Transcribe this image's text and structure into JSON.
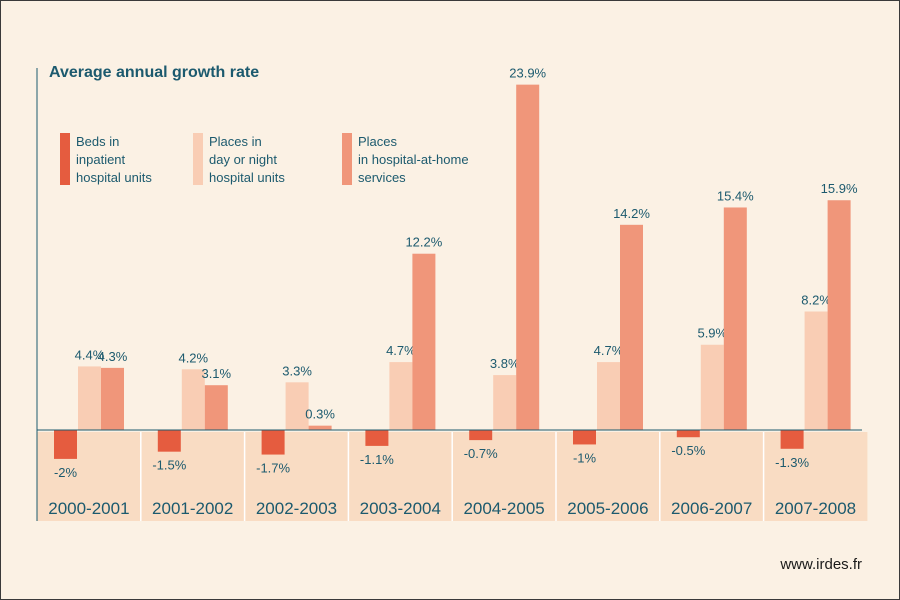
{
  "chart_data": {
    "type": "bar",
    "title": "Average annual growth rate",
    "categories": [
      "2000-2001",
      "2001-2002",
      "2002-2003",
      "2003-2004",
      "2004-2005",
      "2005-2006",
      "2006-2007",
      "2007-2008"
    ],
    "series": [
      {
        "name": "Beds in inpatient hospital units",
        "legend_lines": [
          "Beds in",
          "inpatient",
          "hospital units"
        ],
        "color": "#e55c3f",
        "values": [
          -2,
          -1.5,
          -1.7,
          -1.1,
          -0.7,
          -1,
          -0.5,
          -1.3
        ],
        "labels": [
          "-2%",
          "-1.5%",
          "-1.7%",
          "-1.1%",
          "-0.7%",
          "-1%",
          "-0.5%",
          "-1.3%"
        ]
      },
      {
        "name": "Places in day or night hospital units",
        "legend_lines": [
          "Places in",
          "day or night",
          "hospital units"
        ],
        "color": "#f9cdb4",
        "values": [
          4.4,
          4.2,
          3.3,
          4.7,
          3.8,
          4.7,
          5.9,
          8.2
        ],
        "labels": [
          "4.4%",
          "4.2%",
          "3.3%",
          "4.7%",
          "3.8%",
          "4.7%",
          "5.9%",
          "8.2%"
        ]
      },
      {
        "name": "Places in hospital-at-home services",
        "legend_lines": [
          "Places",
          "in hospital-at-home",
          "services"
        ],
        "color": "#f0967a",
        "values": [
          4.3,
          3.1,
          0.3,
          12.2,
          23.9,
          14.2,
          15.4,
          15.9
        ],
        "labels": [
          "4.3%",
          "3.1%",
          "0.3%",
          "12.2%",
          "23.9%",
          "14.2%",
          "15.4%",
          "15.9%"
        ]
      }
    ],
    "ylim": [
      -3,
      25
    ],
    "grid": false,
    "legend_position": "top-left"
  },
  "source": "www.irdes.fr",
  "colors": {
    "background": "#fbf1e4",
    "text": "#1c5a6e",
    "category_band": "#f9dcc3"
  }
}
